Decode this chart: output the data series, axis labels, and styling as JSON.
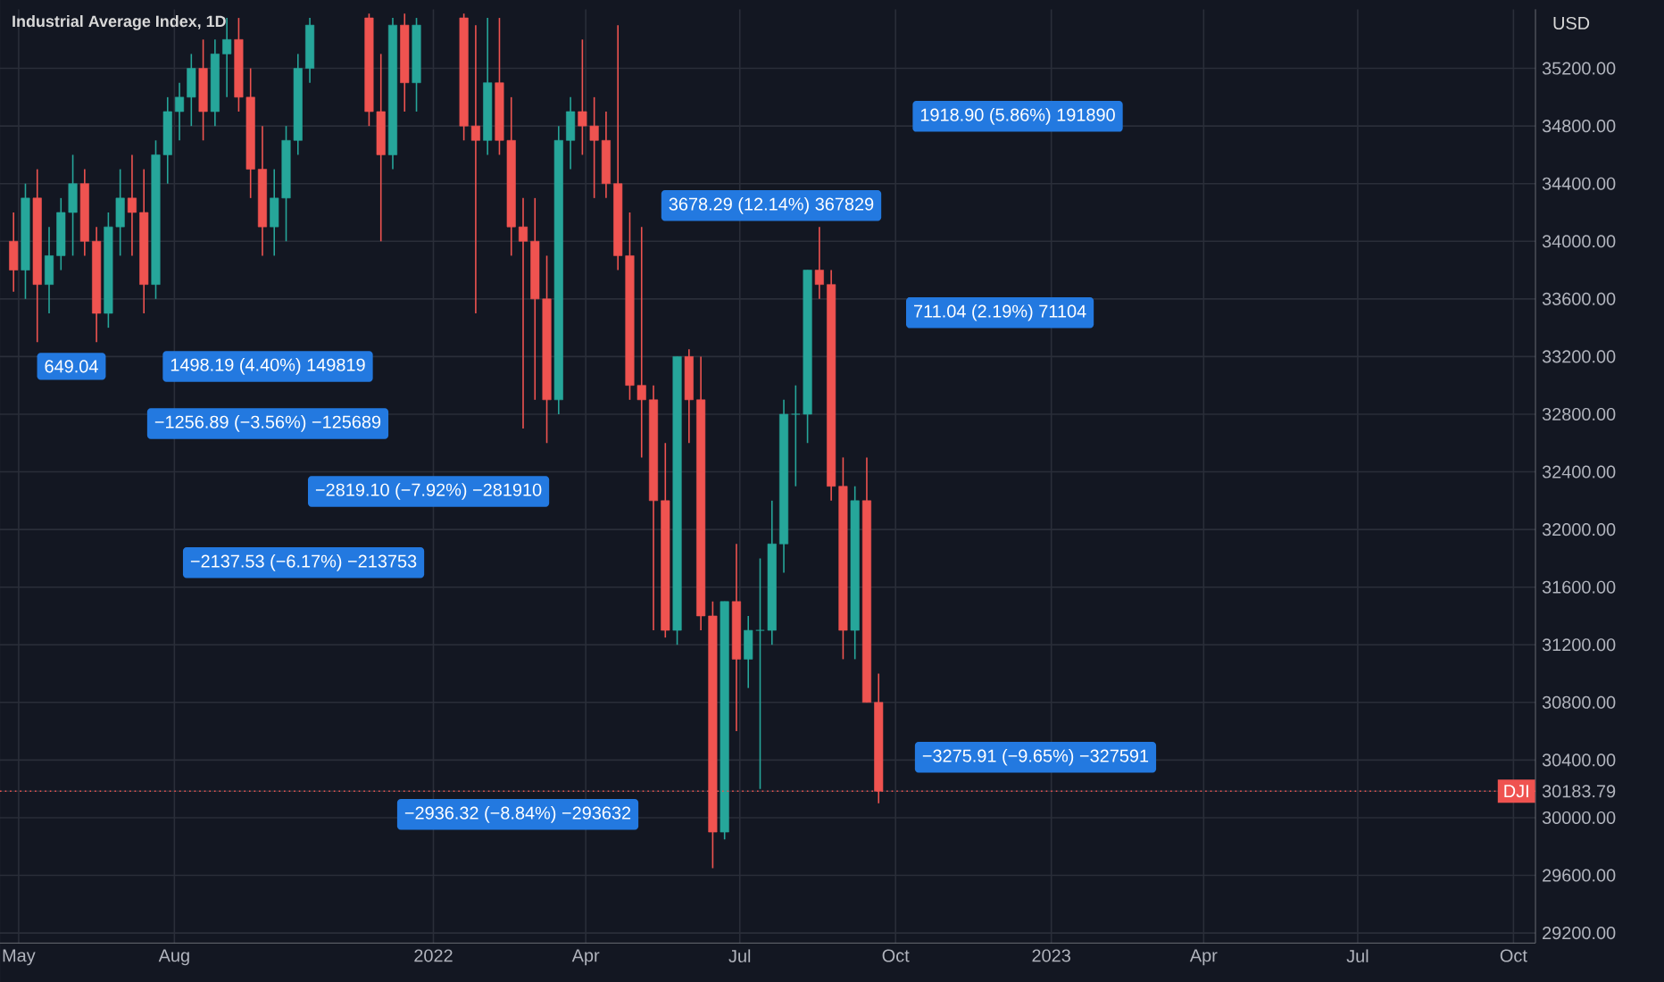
{
  "chart_data": {
    "type": "candlestick",
    "title": "Industrial Average Index, 1D",
    "ylabel": "USD",
    "xlim": [
      "2021-04-20",
      "2023-10-14"
    ],
    "ylim": [
      29130,
      35610
    ],
    "xticks": [
      {
        "value": "2021-05-01",
        "label": "May"
      },
      {
        "value": "2021-08-01",
        "label": "Aug"
      },
      {
        "value": "2022-01-01",
        "label": "2022"
      },
      {
        "value": "2022-04-01",
        "label": "Apr"
      },
      {
        "value": "2022-07-01",
        "label": "Jul"
      },
      {
        "value": "2022-10-01",
        "label": "Oct"
      },
      {
        "value": "2023-01-01",
        "label": "2023"
      },
      {
        "value": "2023-04-01",
        "label": "Apr"
      },
      {
        "value": "2023-07-01",
        "label": "Jul"
      },
      {
        "value": "2023-10-01",
        "label": "Oct"
      }
    ],
    "yticks": [
      {
        "value": 29200,
        "label": "29200.00"
      },
      {
        "value": 29600,
        "label": "29600.00"
      },
      {
        "value": 30000,
        "label": "30000.00"
      },
      {
        "value": 30183.79,
        "label": "30183.79"
      },
      {
        "value": 30400,
        "label": "30400.00"
      },
      {
        "value": 30800,
        "label": "30800.00"
      },
      {
        "value": 31200,
        "label": "31200.00"
      },
      {
        "value": 31600,
        "label": "31600.00"
      },
      {
        "value": 32000,
        "label": "32000.00"
      },
      {
        "value": 32400,
        "label": "32400.00"
      },
      {
        "value": 32800,
        "label": "32800.00"
      },
      {
        "value": 33200,
        "label": "33200.00"
      },
      {
        "value": 33600,
        "label": "33600.00"
      },
      {
        "value": 34000,
        "label": "34000.00"
      },
      {
        "value": 34400,
        "label": "34400.00"
      },
      {
        "value": 34800,
        "label": "34800.00"
      },
      {
        "value": 35200,
        "label": "35200.00"
      }
    ],
    "grid": true,
    "series": [
      {
        "color": "#26a69a",
        "x": [
          "2021-05-05",
          "2021-05-19",
          "2021-05-26",
          "2021-06-02",
          "2021-06-23",
          "2021-06-30",
          "2021-07-21",
          "2021-07-28",
          "2021-08-04",
          "2021-08-11",
          "2021-08-25",
          "2021-09-01",
          "2021-09-29",
          "2021-10-06",
          "2021-10-13",
          "2021-10-20",
          "2021-12-08",
          "2021-12-22",
          "2022-02-02",
          "2022-03-16",
          "2022-03-23",
          "2022-05-25",
          "2022-06-22",
          "2022-07-06",
          "2022-07-13",
          "2022-07-20",
          "2022-07-27",
          "2022-08-03",
          "2022-08-10",
          "2022-09-07"
        ],
        "ohlc": [
          [
            33800,
            34400,
            33600,
            34300
          ],
          [
            33700,
            34100,
            33500,
            33900
          ],
          [
            33900,
            34300,
            33800,
            34200
          ],
          [
            34200,
            34600,
            33900,
            34400
          ],
          [
            33500,
            34200,
            33400,
            34100
          ],
          [
            34100,
            34500,
            33900,
            34300
          ],
          [
            33700,
            34700,
            33600,
            34600
          ],
          [
            34600,
            35000,
            34400,
            34900
          ],
          [
            34900,
            35100,
            34700,
            35000
          ],
          [
            35000,
            35300,
            34800,
            35200
          ],
          [
            34900,
            35400,
            34800,
            35300
          ],
          [
            35300,
            35550,
            35000,
            35400
          ],
          [
            34100,
            34500,
            33900,
            34300
          ],
          [
            34300,
            34800,
            34000,
            34700
          ],
          [
            34700,
            35300,
            34600,
            35200
          ],
          [
            35200,
            35550,
            35100,
            35500
          ],
          [
            34600,
            35550,
            34500,
            35500
          ],
          [
            35100,
            35550,
            34900,
            35500
          ],
          [
            34700,
            35550,
            34600,
            35100
          ],
          [
            32900,
            34800,
            32800,
            34700
          ],
          [
            34700,
            35000,
            34500,
            34900
          ],
          [
            31300,
            33200,
            31200,
            33200
          ],
          [
            29900,
            31500,
            29850,
            31500
          ],
          [
            31100,
            31400,
            30900,
            31300
          ],
          [
            31300,
            31800,
            30200,
            31300
          ],
          [
            31300,
            32200,
            31200,
            31900
          ],
          [
            31900,
            32900,
            31700,
            32800
          ],
          [
            32800,
            33000,
            32300,
            32800
          ],
          [
            32800,
            33800,
            32600,
            33800
          ],
          [
            31300,
            32300,
            31100,
            32200
          ]
        ]
      },
      {
        "color": "#ef5350",
        "x": [
          "2021-04-28",
          "2021-05-12",
          "2021-06-09",
          "2021-06-16",
          "2021-07-07",
          "2021-07-14",
          "2021-08-18",
          "2021-09-08",
          "2021-09-15",
          "2021-09-22",
          "2021-11-24",
          "2021-12-01",
          "2021-12-15",
          "2022-01-19",
          "2022-01-26",
          "2022-02-09",
          "2022-02-16",
          "2022-02-23",
          "2022-03-02",
          "2022-03-09",
          "2022-03-30",
          "2022-04-06",
          "2022-04-13",
          "2022-04-20",
          "2022-04-27",
          "2022-05-04",
          "2022-05-11",
          "2022-05-18",
          "2022-06-01",
          "2022-06-08",
          "2022-06-15",
          "2022-06-29",
          "2022-08-17",
          "2022-08-24",
          "2022-08-31",
          "2022-09-14",
          "2022-09-21"
        ],
        "ohlc": [
          [
            34000,
            34200,
            33650,
            33800
          ],
          [
            34300,
            34500,
            33300,
            33700
          ],
          [
            34400,
            34500,
            33900,
            34000
          ],
          [
            34000,
            34100,
            33300,
            33500
          ],
          [
            34300,
            34600,
            33900,
            34200
          ],
          [
            34200,
            34500,
            33500,
            33700
          ],
          [
            35200,
            35400,
            34700,
            34900
          ],
          [
            35400,
            35550,
            34900,
            35000
          ],
          [
            35000,
            35200,
            34300,
            34500
          ],
          [
            34500,
            34800,
            33900,
            34100
          ],
          [
            35550,
            35580,
            34800,
            34900
          ],
          [
            34900,
            35300,
            34000,
            34600
          ],
          [
            35500,
            35580,
            34900,
            35100
          ],
          [
            35550,
            35580,
            34700,
            34800
          ],
          [
            34800,
            35500,
            33500,
            34700
          ],
          [
            35100,
            35550,
            34600,
            34700
          ],
          [
            34700,
            35000,
            33900,
            34100
          ],
          [
            34100,
            34300,
            32700,
            34000
          ],
          [
            34000,
            34300,
            32900,
            33600
          ],
          [
            33600,
            33900,
            32600,
            32900
          ],
          [
            34900,
            35400,
            34600,
            34800
          ],
          [
            34800,
            35000,
            34300,
            34700
          ],
          [
            34700,
            34900,
            34300,
            34400
          ],
          [
            34400,
            35500,
            33800,
            33900
          ],
          [
            33900,
            34200,
            32900,
            33000
          ],
          [
            33000,
            34100,
            32500,
            32900
          ],
          [
            32900,
            33000,
            31300,
            32200
          ],
          [
            32200,
            32600,
            31250,
            31300
          ],
          [
            33200,
            33250,
            32600,
            32900
          ],
          [
            32900,
            33200,
            31300,
            31400
          ],
          [
            31400,
            31500,
            29650,
            29900
          ],
          [
            31500,
            31900,
            30600,
            31100
          ],
          [
            33800,
            34100,
            33600,
            33700
          ],
          [
            33700,
            33800,
            32200,
            32300
          ],
          [
            32300,
            32500,
            31100,
            31300
          ],
          [
            32200,
            32500,
            30800,
            30800
          ],
          [
            30800,
            31000,
            30100,
            30183.79
          ]
        ]
      }
    ],
    "ref_lines": [
      {
        "axis": "y",
        "value": 30183.79,
        "label": "DJI",
        "color": "#ef5350",
        "line_style": "dotted"
      }
    ],
    "annotations": [
      "649.04",
      "1498.19 (4.40%) 149819",
      "1918.90 (5.86%) 191890",
      "3678.29 (12.14%) 367829",
      "−1256.89 (−3.56%) −125689",
      "711.04 (2.19%) 71104",
      "−2819.10 (−7.92%) −281910",
      "−2137.53 (−6.17%) −213753",
      "−3275.91 (−9.65%) −327591",
      "−2936.32 (−8.84%) −293632"
    ]
  }
}
